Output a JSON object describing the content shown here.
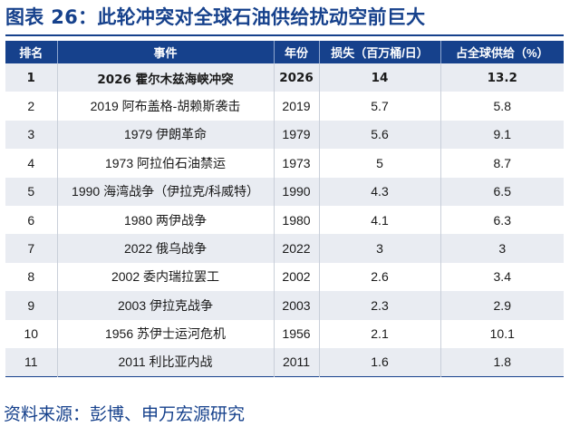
{
  "title": "图表 26：此轮冲突对全球石油供给扰动空前巨大",
  "headers": [
    "排名",
    "事件",
    "年份",
    "损失（百万桶/日）",
    "占全球供给（%）"
  ],
  "rows": [
    {
      "rank": "1",
      "event": "2026 霍尔木兹海峡冲突",
      "year": "2026",
      "loss": "14",
      "share": "13.2"
    },
    {
      "rank": "2",
      "event": "2019 阿布盖格-胡赖斯袭击",
      "year": "2019",
      "loss": "5.7",
      "share": "5.8"
    },
    {
      "rank": "3",
      "event": "1979 伊朗革命",
      "year": "1979",
      "loss": "5.6",
      "share": "9.1"
    },
    {
      "rank": "4",
      "event": "1973 阿拉伯石油禁运",
      "year": "1973",
      "loss": "5",
      "share": "8.7"
    },
    {
      "rank": "5",
      "event": "1990 海湾战争（伊拉克/科威特）",
      "year": "1990",
      "loss": "4.3",
      "share": "6.5"
    },
    {
      "rank": "6",
      "event": "1980 两伊战争",
      "year": "1980",
      "loss": "4.1",
      "share": "6.3"
    },
    {
      "rank": "7",
      "event": "2022 俄乌战争",
      "year": "2022",
      "loss": "3",
      "share": "3"
    },
    {
      "rank": "8",
      "event": "2002 委内瑞拉罢工",
      "year": "2002",
      "loss": "2.6",
      "share": "3.4"
    },
    {
      "rank": "9",
      "event": "2003 伊拉克战争",
      "year": "2003",
      "loss": "2.3",
      "share": "2.9"
    },
    {
      "rank": "10",
      "event": "1956 苏伊士运河危机",
      "year": "1956",
      "loss": "2.1",
      "share": "10.1"
    },
    {
      "rank": "11",
      "event": "2011 利比亚内战",
      "year": "2011",
      "loss": "1.6",
      "share": "1.8"
    }
  ],
  "source": "资料来源：彭博、申万宏源研究",
  "colors": {
    "accent": "#16418c",
    "stripe": "#e9ecf2"
  }
}
